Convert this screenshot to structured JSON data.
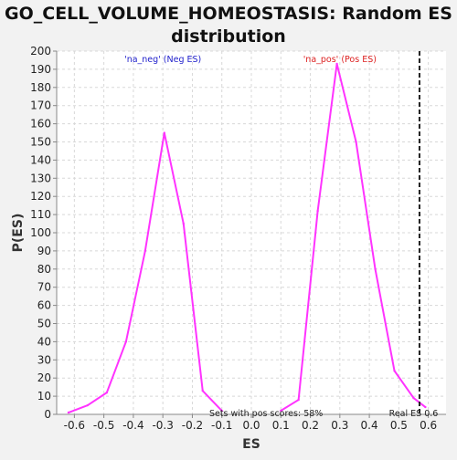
{
  "chart_data": {
    "type": "line",
    "title": "GO_CELL_VOLUME_HOMEOSTASIS: Random ES distribution",
    "title_lines": [
      "GO_CELL_VOLUME_HOMEOSTASIS: Random ES",
      "distribution"
    ],
    "xlabel": "ES",
    "ylabel": "P(ES)",
    "xlim": [
      -0.66,
      0.66
    ],
    "ylim": [
      0,
      200
    ],
    "x_ticks": [
      -0.6,
      -0.5,
      -0.4,
      -0.3,
      -0.2,
      -0.1,
      0.0,
      0.1,
      0.2,
      0.3,
      0.4,
      0.5,
      0.6
    ],
    "x_tick_labels": [
      "-0.6",
      "-0.5",
      "-0.4",
      "-0.3",
      "-0.2",
      "-0.1",
      "0.0",
      "0.1",
      "0.2",
      "0.3",
      "0.4",
      "0.5",
      "0.6"
    ],
    "y_ticks": [
      0,
      10,
      20,
      30,
      40,
      50,
      60,
      70,
      80,
      90,
      100,
      110,
      120,
      130,
      140,
      150,
      160,
      170,
      180,
      190,
      200
    ],
    "grid": true,
    "series": [
      {
        "name": "",
        "color": "#ff33ff",
        "x": [
          -0.62,
          -0.555,
          -0.49,
          -0.425,
          -0.36,
          -0.295,
          -0.23,
          -0.165,
          -0.1
        ],
        "y": [
          1,
          5,
          12,
          40,
          90,
          155,
          105,
          13,
          2
        ]
      },
      {
        "name": "",
        "color": "#ff33ff",
        "x": [
          0.1,
          0.16,
          0.225,
          0.29,
          0.355,
          0.42,
          0.485,
          0.55,
          0.59
        ],
        "y": [
          2,
          8,
          112,
          193,
          150,
          80,
          24,
          9,
          4
        ]
      }
    ],
    "annotations": {
      "neg": {
        "text": "'na_neg' (Neg ES)",
        "color": "#2222cc",
        "x": -0.3,
        "y": 196
      },
      "pos": {
        "text": "'na_pos' (Pos ES)",
        "color": "#dd2222",
        "x": 0.3,
        "y": 196
      },
      "sets": {
        "text": "Sets with pos scores: 58%",
        "color": "#222222",
        "x": 0.05,
        "y": 1
      },
      "real_es": {
        "text": "Real ES 0.6",
        "color": "#222222",
        "x": 0.55,
        "y": 1
      }
    },
    "real_es": 0.57,
    "real_es_color": "#222222",
    "grid_color": "#d8d8d8",
    "plot_bg": "#ffffff",
    "page_bg": "#f2f2f2"
  }
}
